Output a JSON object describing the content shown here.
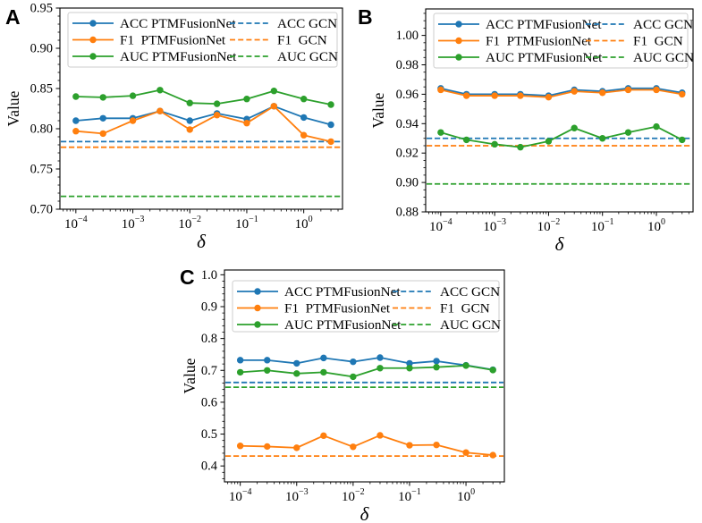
{
  "figure": {
    "background": "#ffffff",
    "colors": {
      "acc": "#1f77b4",
      "f1": "#ff7f0e",
      "auc": "#2ca02c",
      "axis": "#000000",
      "legend_border": "#cccccc"
    },
    "legend": {
      "ptm_labels": [
        "ACC PTMFusionNet",
        "F1  PTMFusionNet",
        "AUC PTMFusionNet"
      ],
      "gcn_labels": [
        "ACC GCN",
        "F1  GCN",
        "AUC GCN"
      ]
    }
  },
  "chart_data": [
    {
      "panel_label": "A",
      "type": "line",
      "xscale": "log",
      "xlabel": "δ",
      "ylabel": "Value",
      "x": [
        0.0001,
        0.0003,
        0.001,
        0.003,
        0.01,
        0.03,
        0.1,
        0.3,
        1,
        3
      ],
      "xlim": [
        5.25e-05,
        4.79
      ],
      "ylim": [
        0.7,
        0.95
      ],
      "ytick_labels": [
        "0.70",
        "0.75",
        "0.80",
        "0.85",
        "0.90",
        "0.95"
      ],
      "yminor_step": 0.01,
      "xtick_exponents": [
        -4,
        -3,
        -2,
        -1,
        0
      ],
      "grid": false,
      "legend_position": "upper center, two columns",
      "series": [
        {
          "name": "ACC PTMFusionNet",
          "color_key": "acc",
          "style": "solid",
          "values": [
            0.81,
            0.813,
            0.813,
            0.822,
            0.81,
            0.819,
            0.812,
            0.828,
            0.814,
            0.805
          ]
        },
        {
          "name": "F1 PTMFusionNet",
          "color_key": "f1",
          "style": "solid",
          "values": [
            0.797,
            0.794,
            0.81,
            0.822,
            0.799,
            0.817,
            0.807,
            0.828,
            0.792,
            0.784
          ]
        },
        {
          "name": "AUC PTMFusionNet",
          "color_key": "auc",
          "style": "solid",
          "values": [
            0.84,
            0.839,
            0.841,
            0.848,
            0.832,
            0.831,
            0.837,
            0.847,
            0.837,
            0.83
          ]
        }
      ],
      "hlines": [
        {
          "name": "ACC GCN",
          "color_key": "acc",
          "style": "dashed",
          "value": 0.784
        },
        {
          "name": "F1 GCN",
          "color_key": "f1",
          "style": "dashed",
          "value": 0.777
        },
        {
          "name": "AUC GCN",
          "color_key": "auc",
          "style": "dashed",
          "value": 0.716
        }
      ]
    },
    {
      "panel_label": "B",
      "type": "line",
      "xscale": "log",
      "xlabel": "δ",
      "ylabel": "Value",
      "x": [
        0.0001,
        0.0003,
        0.001,
        0.003,
        0.01,
        0.03,
        0.1,
        0.3,
        1,
        3
      ],
      "xlim": [
        5.25e-05,
        4.79
      ],
      "ylim": [
        0.88,
        1.018
      ],
      "ytick_labels": [
        "0.88",
        "0.90",
        "0.92",
        "0.94",
        "0.96",
        "0.98",
        "1.00"
      ],
      "yminor_step": 0.005,
      "xtick_exponents": [
        -4,
        -3,
        -2,
        -1,
        0
      ],
      "grid": false,
      "legend_position": "upper center, two columns",
      "series": [
        {
          "name": "ACC PTMFusionNet",
          "color_key": "acc",
          "style": "solid",
          "values": [
            0.964,
            0.96,
            0.96,
            0.96,
            0.959,
            0.963,
            0.962,
            0.964,
            0.964,
            0.961
          ]
        },
        {
          "name": "F1 PTMFusionNet",
          "color_key": "f1",
          "style": "solid",
          "values": [
            0.963,
            0.959,
            0.959,
            0.959,
            0.958,
            0.962,
            0.961,
            0.963,
            0.963,
            0.96
          ]
        },
        {
          "name": "AUC PTMFusionNet",
          "color_key": "auc",
          "style": "solid",
          "values": [
            0.934,
            0.929,
            0.926,
            0.924,
            0.928,
            0.937,
            0.93,
            0.934,
            0.938,
            0.929
          ]
        }
      ],
      "hlines": [
        {
          "name": "ACC GCN",
          "color_key": "acc",
          "style": "dashed",
          "value": 0.93
        },
        {
          "name": "F1 GCN",
          "color_key": "f1",
          "style": "dashed",
          "value": 0.925
        },
        {
          "name": "AUC GCN",
          "color_key": "auc",
          "style": "dashed",
          "value": 0.899
        }
      ]
    },
    {
      "panel_label": "C",
      "type": "line",
      "xscale": "log",
      "xlabel": "δ",
      "ylabel": "Value",
      "x": [
        0.0001,
        0.0003,
        0.001,
        0.003,
        0.01,
        0.03,
        0.1,
        0.3,
        1,
        3
      ],
      "xlim": [
        5.25e-05,
        4.79
      ],
      "ylim": [
        0.35,
        1.015
      ],
      "ytick_labels": [
        "0.4",
        "0.5",
        "0.6",
        "0.7",
        "0.8",
        "0.9",
        "1.0"
      ],
      "yminor_step": 0.02,
      "xtick_exponents": [
        -4,
        -3,
        -2,
        -1,
        0
      ],
      "grid": false,
      "legend_position": "upper center, two columns",
      "series": [
        {
          "name": "ACC PTMFusionNet",
          "color_key": "acc",
          "style": "solid",
          "values": [
            0.732,
            0.732,
            0.722,
            0.739,
            0.727,
            0.74,
            0.722,
            0.729,
            0.716,
            0.702
          ]
        },
        {
          "name": "F1 PTMFusionNet",
          "color_key": "f1",
          "style": "solid",
          "values": [
            0.463,
            0.461,
            0.457,
            0.495,
            0.46,
            0.496,
            0.465,
            0.466,
            0.442,
            0.434
          ]
        },
        {
          "name": "AUC PTMFusionNet",
          "color_key": "auc",
          "style": "solid",
          "values": [
            0.694,
            0.7,
            0.69,
            0.694,
            0.68,
            0.707,
            0.707,
            0.71,
            0.715,
            0.701
          ]
        }
      ],
      "hlines": [
        {
          "name": "ACC GCN",
          "color_key": "acc",
          "style": "dashed",
          "value": 0.662
        },
        {
          "name": "F1 GCN",
          "color_key": "f1",
          "style": "dashed",
          "value": 0.431
        },
        {
          "name": "AUC GCN",
          "color_key": "auc",
          "style": "dashed",
          "value": 0.647
        }
      ]
    }
  ]
}
